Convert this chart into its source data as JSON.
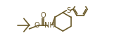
{
  "bg_color": "#ffffff",
  "line_color": "#6b5a2a",
  "lw": 1.2,
  "fs": 6.5,
  "figsize": [
    1.69,
    0.78
  ],
  "dpi": 100,
  "xlim": [
    0,
    169
  ],
  "ylim": [
    0,
    78
  ]
}
